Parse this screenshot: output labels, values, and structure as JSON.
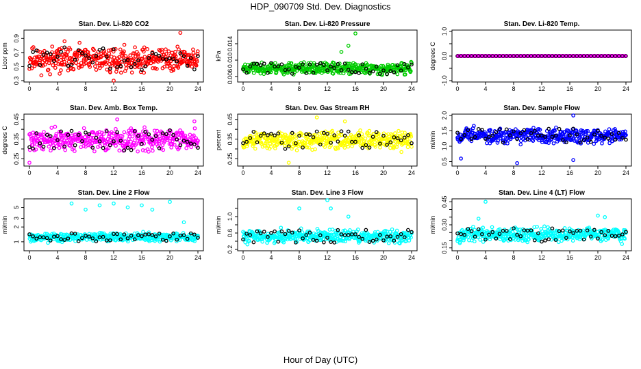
{
  "figure": {
    "title": "HDP_090709  Std. Dev. Diagnostics",
    "xlabel": "Hour of Day (UTC)"
  },
  "chart_data": [
    {
      "type": "scatter",
      "title": "Stan. Dev. Li-820 CO2",
      "ylabel": "Licor ppm",
      "color": "#ff0000",
      "xlim": [
        0,
        24
      ],
      "ylim": [
        0.3,
        1.0
      ],
      "xticks": [
        0,
        4,
        8,
        12,
        16,
        20,
        24
      ],
      "yticks": [
        0.3,
        0.5,
        0.7,
        0.9
      ],
      "ytick_labels": [
        "0.3",
        "0.5",
        "0.7",
        "0.9"
      ],
      "main_range": [
        0.35,
        0.85
      ],
      "outliers": [
        [
          21.5,
          0.98
        ],
        [
          12,
          0.3
        ],
        [
          5,
          0.86
        ]
      ],
      "seed": 11
    },
    {
      "type": "scatter",
      "title": "Stan. Dev. Li-820 Pressure",
      "ylabel": "kPa",
      "color": "#00cc00",
      "xlim": [
        0,
        24
      ],
      "ylim": [
        0.005,
        0.017
      ],
      "xticks": [
        0,
        4,
        8,
        12,
        16,
        20,
        24
      ],
      "yticks": [
        0.006,
        0.01,
        0.014
      ],
      "ytick_labels": [
        "0.006",
        "0.010",
        "0.014"
      ],
      "main_range": [
        0.006,
        0.01
      ],
      "outliers": [
        [
          16,
          0.0165
        ],
        [
          15,
          0.0135
        ],
        [
          14,
          0.012
        ]
      ],
      "seed": 23
    },
    {
      "type": "scatter",
      "title": "Stan. Dev. Li-820 Temp.",
      "ylabel": "degrees C",
      "color": "#ff00ff",
      "xlim": [
        0,
        24
      ],
      "ylim": [
        -1.0,
        1.0
      ],
      "xticks": [
        0,
        4,
        8,
        12,
        16,
        20,
        24
      ],
      "yticks": [
        -1.0,
        -0.5,
        0.0,
        0.5,
        1.0
      ],
      "ytick_labels": [
        "-1.0",
        "0.0",
        "1.0"
      ],
      "ytick_label_values": [
        -1.0,
        0.0,
        1.0
      ],
      "main_range": [
        0.0,
        0.0
      ],
      "outliers": [],
      "seed": 37
    },
    {
      "type": "scatter",
      "title": "Stan. Dev. Amb. Box Temp.",
      "ylabel": "degrees C",
      "color": "#ff00ff",
      "xlim": [
        0,
        24
      ],
      "ylim": [
        0.22,
        0.47
      ],
      "xticks": [
        0,
        4,
        8,
        12,
        16,
        20,
        24
      ],
      "yticks": [
        0.25,
        0.3,
        0.35,
        0.4,
        0.45
      ],
      "ytick_labels": [
        "0.25",
        "0.35",
        "0.45"
      ],
      "ytick_label_values": [
        0.25,
        0.35,
        0.45
      ],
      "main_range": [
        0.27,
        0.42
      ],
      "outliers": [
        [
          0,
          0.23
        ],
        [
          12.5,
          0.45
        ],
        [
          23.5,
          0.44
        ]
      ],
      "seed": 41
    },
    {
      "type": "scatter",
      "title": "Stan. Dev. Gas Stream RH",
      "ylabel": "percent",
      "color": "#ffff00",
      "xlim": [
        0,
        24
      ],
      "ylim": [
        0.22,
        0.47
      ],
      "xticks": [
        0,
        4,
        8,
        12,
        16,
        20,
        24
      ],
      "yticks": [
        0.25,
        0.3,
        0.35,
        0.4,
        0.45
      ],
      "ytick_labels": [
        "0.25",
        "0.35",
        "0.45"
      ],
      "ytick_label_values": [
        0.25,
        0.35,
        0.45
      ],
      "main_range": [
        0.28,
        0.41
      ],
      "outliers": [
        [
          6.5,
          0.23
        ],
        [
          10.5,
          0.46
        ],
        [
          14.5,
          0.44
        ]
      ],
      "seed": 53
    },
    {
      "type": "scatter",
      "title": "Stan. Dev. Sample Flow",
      "ylabel": "ml/min",
      "color": "#0000ff",
      "xlim": [
        0,
        24
      ],
      "ylim": [
        0.4,
        2.0
      ],
      "xticks": [
        0,
        4,
        8,
        12,
        16,
        20,
        24
      ],
      "yticks": [
        0.5,
        1.0,
        1.5,
        2.0
      ],
      "ytick_labels": [
        "0.5",
        "1.0",
        "1.5",
        "2.0"
      ],
      "main_range": [
        1.0,
        1.7
      ],
      "outliers": [
        [
          8.5,
          0.45
        ],
        [
          16.5,
          0.55
        ],
        [
          16.5,
          2.0
        ],
        [
          0.5,
          0.6
        ]
      ],
      "seed": 67
    },
    {
      "type": "scatter",
      "title": "Stan. Dev. Line 2 Flow",
      "ylabel": "ml/min",
      "color": "#00ffff",
      "xlim": [
        0,
        24
      ],
      "ylim": [
        0.7,
        7
      ],
      "yscale": "log",
      "xticks": [
        0,
        4,
        8,
        12,
        16,
        20,
        24
      ],
      "yticks": [
        1,
        2,
        3,
        5
      ],
      "ytick_labels": [
        "1",
        "2",
        "3",
        "5"
      ],
      "main_range": [
        0.9,
        1.6
      ],
      "outliers": [
        [
          6,
          6.0
        ],
        [
          8,
          4.5
        ],
        [
          10,
          5.5
        ],
        [
          12,
          6.0
        ],
        [
          14,
          5.0
        ],
        [
          16,
          5.5
        ],
        [
          17.5,
          4.5
        ],
        [
          20,
          6.5
        ],
        [
          22,
          2.5
        ]
      ],
      "seed": 79
    },
    {
      "type": "scatter",
      "title": "Stan. Dev. Line 3 Flow",
      "ylabel": "ml/min",
      "color": "#00ffff",
      "xlim": [
        0,
        24
      ],
      "ylim": [
        0.2,
        1.4
      ],
      "xticks": [
        0,
        4,
        8,
        12,
        16,
        20,
        24
      ],
      "yticks": [
        0.2,
        0.4,
        0.6,
        0.8,
        1.0,
        1.2
      ],
      "ytick_labels": [
        "0.2",
        "0.6",
        "1.0"
      ],
      "ytick_label_values": [
        0.2,
        0.6,
        1.0
      ],
      "main_range": [
        0.3,
        0.75
      ],
      "outliers": [
        [
          12,
          1.4
        ],
        [
          8,
          1.2
        ],
        [
          12.5,
          1.2
        ],
        [
          15,
          1.0
        ]
      ],
      "seed": 83
    },
    {
      "type": "scatter",
      "title": "Stan. Dev. Line 4 (LT) Flow",
      "ylabel": "ml/min",
      "color": "#00ffff",
      "xlim": [
        0,
        24
      ],
      "ylim": [
        0.14,
        0.46
      ],
      "xticks": [
        0,
        4,
        8,
        12,
        16,
        20,
        24
      ],
      "yticks": [
        0.15,
        0.2,
        0.25,
        0.3,
        0.35,
        0.4,
        0.45
      ],
      "ytick_labels": [
        "0.15",
        "0.30",
        "0.45"
      ],
      "ytick_label_values": [
        0.15,
        0.3,
        0.45
      ],
      "main_range": [
        0.17,
        0.3
      ],
      "outliers": [
        [
          4,
          0.45
        ],
        [
          20,
          0.36
        ],
        [
          21,
          0.35
        ],
        [
          3,
          0.34
        ]
      ],
      "seed": 97
    }
  ]
}
